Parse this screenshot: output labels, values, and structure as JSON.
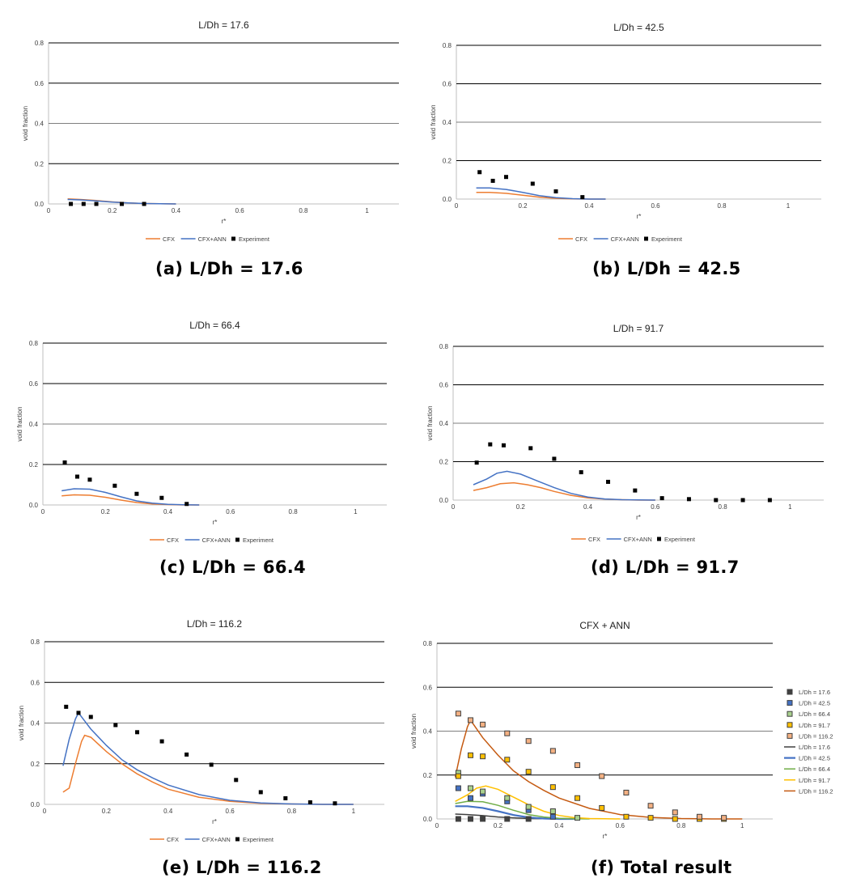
{
  "colors": {
    "cfx": "#ED7D31",
    "cfx_ann": "#4472C4",
    "experiment": "#000000",
    "grid": "#000000",
    "axis": "#bfbfbf",
    "text": "#404040"
  },
  "panels": [
    {
      "caption": "(a)  L/Dh = 17.6",
      "chart_data": {
        "type": "scatter",
        "title": "L/Dh = 17.6",
        "xlabel": "r*",
        "ylabel": "void fraction",
        "xlim": [
          0,
          1.1
        ],
        "ylim": [
          0,
          0.8
        ],
        "x_ticks": [
          "0",
          "0.2",
          "0.4",
          "0.6",
          "0.8",
          "1"
        ],
        "y_ticks": [
          "0.0",
          "0.2",
          "0.4",
          "0.6",
          "0.8"
        ],
        "grid": "horizontal",
        "legend": "bottom",
        "series": [
          {
            "name": "CFX",
            "style": "line",
            "x": [
              0.06,
              0.1,
              0.15,
              0.2,
              0.25,
              0.3,
              0.35,
              0.4
            ],
            "y": [
              0.025,
              0.022,
              0.017,
              0.01,
              0.005,
              0.002,
              0.001,
              0.0
            ]
          },
          {
            "name": "CFX+ANN",
            "style": "line",
            "x": [
              0.06,
              0.1,
              0.15,
              0.2,
              0.25,
              0.3,
              0.35,
              0.4
            ],
            "y": [
              0.022,
              0.02,
              0.015,
              0.009,
              0.005,
              0.002,
              0.001,
              0.0
            ]
          },
          {
            "name": "Experiment",
            "style": "marker",
            "x": [
              0.07,
              0.11,
              0.15,
              0.23,
              0.3
            ],
            "y": [
              0.0,
              0.0,
              0.0,
              0.0,
              0.0
            ]
          }
        ]
      }
    },
    {
      "caption": "(b) L/Dh = 42.5",
      "chart_data": {
        "type": "scatter",
        "title": "L/Dh = 42.5",
        "xlabel": "r*",
        "ylabel": "void fraction",
        "xlim": [
          0,
          1.1
        ],
        "ylim": [
          0,
          0.8
        ],
        "x_ticks": [
          "0",
          "0.2",
          "0.4",
          "0.6",
          "0.8",
          "1"
        ],
        "y_ticks": [
          "0.0",
          "0.2",
          "0.4",
          "0.6",
          "0.8"
        ],
        "grid": "horizontal",
        "legend": "bottom",
        "series": [
          {
            "name": "CFX",
            "style": "line",
            "x": [
              0.06,
              0.1,
              0.15,
              0.2,
              0.25,
              0.3,
              0.35,
              0.4,
              0.45
            ],
            "y": [
              0.035,
              0.035,
              0.03,
              0.02,
              0.01,
              0.004,
              0.001,
              0.0,
              0.0
            ]
          },
          {
            "name": "CFX+ANN",
            "style": "line",
            "x": [
              0.06,
              0.1,
              0.15,
              0.2,
              0.25,
              0.3,
              0.35,
              0.4,
              0.45
            ],
            "y": [
              0.058,
              0.058,
              0.05,
              0.035,
              0.018,
              0.007,
              0.002,
              0.0,
              0.0
            ]
          },
          {
            "name": "Experiment",
            "style": "marker",
            "x": [
              0.07,
              0.11,
              0.15,
              0.23,
              0.3,
              0.38
            ],
            "y": [
              0.14,
              0.095,
              0.115,
              0.08,
              0.04,
              0.01
            ]
          }
        ]
      }
    },
    {
      "caption": "(c) L/Dh = 66.4",
      "chart_data": {
        "type": "scatter",
        "title": "L/Dh = 66.4",
        "xlabel": "r*",
        "ylabel": "void fraction",
        "xlim": [
          0,
          1.1
        ],
        "ylim": [
          0,
          0.8
        ],
        "x_ticks": [
          "0",
          "0.2",
          "0.4",
          "0.6",
          "0.8",
          "1"
        ],
        "y_ticks": [
          "0.0",
          "0.2",
          "0.4",
          "0.6",
          "0.8"
        ],
        "grid": "horizontal",
        "legend": "bottom",
        "series": [
          {
            "name": "CFX",
            "style": "line",
            "x": [
              0.06,
              0.1,
              0.15,
              0.2,
              0.25,
              0.3,
              0.35,
              0.4,
              0.45,
              0.5
            ],
            "y": [
              0.045,
              0.05,
              0.048,
              0.038,
              0.024,
              0.012,
              0.005,
              0.002,
              0.0,
              0.0
            ]
          },
          {
            "name": "CFX+ANN",
            "style": "line",
            "x": [
              0.06,
              0.1,
              0.15,
              0.2,
              0.25,
              0.3,
              0.35,
              0.4,
              0.45,
              0.5
            ],
            "y": [
              0.07,
              0.08,
              0.078,
              0.062,
              0.04,
              0.02,
              0.009,
              0.003,
              0.001,
              0.0
            ]
          },
          {
            "name": "Experiment",
            "style": "marker",
            "x": [
              0.07,
              0.11,
              0.15,
              0.23,
              0.3,
              0.38,
              0.46
            ],
            "y": [
              0.21,
              0.14,
              0.125,
              0.095,
              0.055,
              0.035,
              0.005
            ]
          }
        ]
      }
    },
    {
      "caption": "(d) L/Dh = 91.7",
      "chart_data": {
        "type": "scatter",
        "title": "L/Dh = 91.7",
        "xlabel": "r*",
        "ylabel": "void fraction",
        "xlim": [
          0,
          1.1
        ],
        "ylim": [
          0,
          0.8
        ],
        "x_ticks": [
          "0",
          "0.2",
          "0.4",
          "0.6",
          "0.8",
          "1"
        ],
        "y_ticks": [
          "0.0",
          "0.2",
          "0.4",
          "0.6",
          "0.8"
        ],
        "grid": "horizontal",
        "legend": "bottom",
        "series": [
          {
            "name": "CFX",
            "style": "line",
            "x": [
              0.06,
              0.1,
              0.14,
              0.18,
              0.22,
              0.26,
              0.3,
              0.35,
              0.4,
              0.45,
              0.5,
              0.55,
              0.6
            ],
            "y": [
              0.05,
              0.065,
              0.085,
              0.09,
              0.08,
              0.065,
              0.045,
              0.025,
              0.012,
              0.005,
              0.002,
              0.0,
              0.0
            ]
          },
          {
            "name": "CFX+ANN",
            "style": "line",
            "x": [
              0.06,
              0.1,
              0.13,
              0.16,
              0.2,
              0.25,
              0.3,
              0.35,
              0.4,
              0.45,
              0.5,
              0.55,
              0.6
            ],
            "y": [
              0.08,
              0.11,
              0.14,
              0.15,
              0.135,
              0.1,
              0.065,
              0.035,
              0.016,
              0.006,
              0.002,
              0.001,
              0.0
            ]
          },
          {
            "name": "Experiment",
            "style": "marker",
            "x": [
              0.07,
              0.11,
              0.15,
              0.23,
              0.3,
              0.38,
              0.46,
              0.54,
              0.62,
              0.7,
              0.78,
              0.86,
              0.94
            ],
            "y": [
              0.195,
              0.29,
              0.285,
              0.27,
              0.215,
              0.145,
              0.095,
              0.05,
              0.01,
              0.005,
              0.0,
              0.0,
              0.0
            ]
          }
        ]
      }
    },
    {
      "caption": "(e) L/Dh = 116.2",
      "chart_data": {
        "type": "scatter",
        "title": "L/Dh = 116.2",
        "xlabel": "r*",
        "ylabel": "void fraction",
        "xlim": [
          0,
          1.1
        ],
        "ylim": [
          0,
          0.8
        ],
        "x_ticks": [
          "0",
          "0.2",
          "0.4",
          "0.6",
          "0.8",
          "1"
        ],
        "y_ticks": [
          "0.0",
          "0.2",
          "0.4",
          "0.6",
          "0.8"
        ],
        "grid": "horizontal",
        "legend": "bottom",
        "series": [
          {
            "name": "CFX",
            "style": "line",
            "x": [
              0.06,
              0.08,
              0.1,
              0.12,
              0.13,
              0.15,
              0.2,
              0.25,
              0.3,
              0.35,
              0.4,
              0.5,
              0.6,
              0.7,
              0.8,
              0.9,
              1.0
            ],
            "y": [
              0.06,
              0.08,
              0.2,
              0.31,
              0.34,
              0.33,
              0.26,
              0.2,
              0.15,
              0.11,
              0.075,
              0.035,
              0.015,
              0.005,
              0.002,
              0.0,
              0.0
            ]
          },
          {
            "name": "CFX+ANN",
            "style": "line",
            "x": [
              0.06,
              0.08,
              0.1,
              0.11,
              0.15,
              0.2,
              0.25,
              0.3,
              0.35,
              0.4,
              0.5,
              0.6,
              0.7,
              0.8,
              0.9,
              1.0
            ],
            "y": [
              0.19,
              0.32,
              0.42,
              0.45,
              0.37,
              0.29,
              0.22,
              0.17,
              0.13,
              0.095,
              0.048,
              0.02,
              0.007,
              0.002,
              0.0,
              0.0
            ]
          },
          {
            "name": "Experiment",
            "style": "marker",
            "x": [
              0.07,
              0.11,
              0.15,
              0.23,
              0.3,
              0.38,
              0.46,
              0.54,
              0.62,
              0.7,
              0.78,
              0.86,
              0.94
            ],
            "y": [
              0.48,
              0.45,
              0.43,
              0.39,
              0.355,
              0.31,
              0.245,
              0.195,
              0.12,
              0.06,
              0.03,
              0.01,
              0.005
            ]
          }
        ]
      }
    },
    {
      "caption": "(f) Total result",
      "chart_data": {
        "type": "scatter",
        "title": "CFX + ANN",
        "xlabel": "r*",
        "ylabel": "void fraction",
        "xlim": [
          0,
          1.1
        ],
        "ylim": [
          0,
          0.8
        ],
        "x_ticks": [
          "0",
          "0.2",
          "0.4",
          "0.6",
          "0.8",
          "1"
        ],
        "y_ticks": [
          "0.0",
          "0.2",
          "0.4",
          "0.6",
          "0.8"
        ],
        "grid": "horizontal",
        "legend": "right",
        "series": [
          {
            "name": "L/Dh = 17.6",
            "style": "marker",
            "color": "#404040",
            "x": [
              0.07,
              0.11,
              0.15,
              0.23,
              0.3
            ],
            "y": [
              0.0,
              0.0,
              0.0,
              0.0,
              0.0
            ]
          },
          {
            "name": "L/Dh = 42.5",
            "style": "marker",
            "color": "#4472C4",
            "x": [
              0.07,
              0.11,
              0.15,
              0.23,
              0.3,
              0.38
            ],
            "y": [
              0.14,
              0.095,
              0.115,
              0.08,
              0.04,
              0.01
            ]
          },
          {
            "name": "L/Dh = 66.4",
            "style": "marker",
            "color": "#A9D18E",
            "x": [
              0.07,
              0.11,
              0.15,
              0.23,
              0.3,
              0.38,
              0.46
            ],
            "y": [
              0.21,
              0.14,
              0.125,
              0.095,
              0.055,
              0.035,
              0.005
            ]
          },
          {
            "name": "L/Dh = 91.7",
            "style": "marker",
            "color": "#FFC000",
            "x": [
              0.07,
              0.11,
              0.15,
              0.23,
              0.3,
              0.38,
              0.46,
              0.54,
              0.62,
              0.7,
              0.78,
              0.86,
              0.94
            ],
            "y": [
              0.195,
              0.29,
              0.285,
              0.27,
              0.215,
              0.145,
              0.095,
              0.05,
              0.01,
              0.005,
              0.0,
              0.0,
              0.0
            ]
          },
          {
            "name": "L/Dh = 116.2",
            "style": "marker",
            "color": "#F4B183",
            "x": [
              0.07,
              0.11,
              0.15,
              0.23,
              0.3,
              0.38,
              0.46,
              0.54,
              0.62,
              0.7,
              0.78,
              0.86,
              0.94
            ],
            "y": [
              0.48,
              0.45,
              0.43,
              0.39,
              0.355,
              0.31,
              0.245,
              0.195,
              0.12,
              0.06,
              0.03,
              0.01,
              0.005
            ]
          },
          {
            "name": "L/Dh = 17.6",
            "style": "line",
            "color": "#404040",
            "x": [
              0.06,
              0.1,
              0.15,
              0.2,
              0.25,
              0.3,
              0.35,
              0.4
            ],
            "y": [
              0.022,
              0.02,
              0.015,
              0.009,
              0.005,
              0.002,
              0.001,
              0.0
            ]
          },
          {
            "name": "L/Dh = 42.5",
            "style": "line",
            "color": "#4472C4",
            "x": [
              0.06,
              0.1,
              0.15,
              0.2,
              0.25,
              0.3,
              0.35,
              0.4,
              0.45
            ],
            "y": [
              0.058,
              0.058,
              0.05,
              0.035,
              0.018,
              0.007,
              0.002,
              0.0,
              0.0
            ]
          },
          {
            "name": "L/Dh = 66.4",
            "style": "line",
            "color": "#70AD47",
            "x": [
              0.06,
              0.1,
              0.15,
              0.2,
              0.25,
              0.3,
              0.35,
              0.4,
              0.45,
              0.5
            ],
            "y": [
              0.07,
              0.08,
              0.078,
              0.062,
              0.04,
              0.02,
              0.009,
              0.003,
              0.001,
              0.0
            ]
          },
          {
            "name": "L/Dh = 91.7",
            "style": "line",
            "color": "#FFC000",
            "x": [
              0.06,
              0.1,
              0.13,
              0.16,
              0.2,
              0.25,
              0.3,
              0.35,
              0.4,
              0.45,
              0.5,
              0.55,
              0.6
            ],
            "y": [
              0.08,
              0.11,
              0.14,
              0.15,
              0.135,
              0.1,
              0.065,
              0.035,
              0.016,
              0.006,
              0.002,
              0.001,
              0.0
            ]
          },
          {
            "name": "L/Dh = 116.2",
            "style": "line",
            "color": "#C55A11",
            "x": [
              0.06,
              0.08,
              0.1,
              0.11,
              0.15,
              0.2,
              0.25,
              0.3,
              0.35,
              0.4,
              0.5,
              0.6,
              0.7,
              0.8,
              0.9,
              1.0
            ],
            "y": [
              0.19,
              0.32,
              0.42,
              0.45,
              0.37,
              0.29,
              0.22,
              0.17,
              0.13,
              0.095,
              0.048,
              0.02,
              0.007,
              0.002,
              0.0,
              0.0
            ]
          }
        ]
      }
    }
  ]
}
